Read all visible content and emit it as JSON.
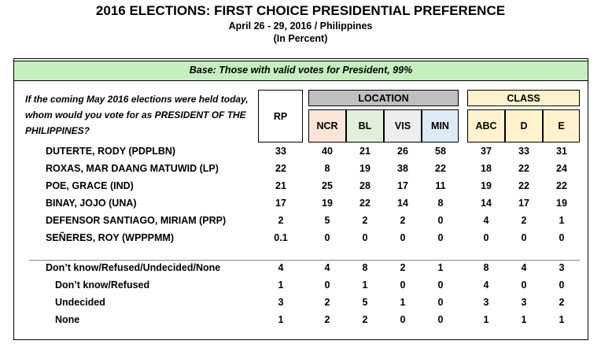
{
  "header": {
    "title": "2016 ELECTIONS: FIRST CHOICE PRESIDENTIAL PREFERENCE",
    "date_line": "April 26 - 29, 2016 / Philippines",
    "unit_line": "(In Percent)"
  },
  "base_note": "Base: Those with valid votes for President, 99%",
  "question": "If the coming May 2016 elections were held today, whom would you vote for as PRESIDENT OF THE PHILIPPINES?",
  "columns": {
    "rp": "RP",
    "location_group": "LOCATION",
    "class_group": "CLASS",
    "ncr": "NCR",
    "bl": "BL",
    "vis": "VIS",
    "min": "MIN",
    "abc": "ABC",
    "d": "D",
    "e": "E"
  },
  "colors": {
    "base_bar": "#c6efc0",
    "location_group": "#bfbfbf",
    "class_group": "#fff2cc",
    "ncr": "#fce4d6",
    "bl": "#e2efda",
    "vis": "#ededed",
    "min": "#ddebf7",
    "class_sub": "#fff2cc"
  },
  "rows": [
    {
      "label": "DUTERTE, RODY (PDPLBN)",
      "values": [
        "33",
        "40",
        "21",
        "26",
        "58",
        "37",
        "33",
        "31"
      ]
    },
    {
      "label": "ROXAS, MAR DAANG MATUWID (LP)",
      "values": [
        "22",
        "8",
        "19",
        "38",
        "22",
        "18",
        "22",
        "24"
      ]
    },
    {
      "label": "POE, GRACE (IND)",
      "values": [
        "21",
        "25",
        "28",
        "17",
        "11",
        "19",
        "22",
        "22"
      ]
    },
    {
      "label": "BINAY, JOJO (UNA)",
      "values": [
        "17",
        "19",
        "22",
        "14",
        "8",
        "14",
        "17",
        "19"
      ]
    },
    {
      "label": "DEFENSOR SANTIAGO, MIRIAM (PRP)",
      "values": [
        "2",
        "5",
        "2",
        "2",
        "0",
        "4",
        "2",
        "1"
      ]
    },
    {
      "label": "SEÑERES, ROY (WPPPMM)",
      "values": [
        "0.1",
        "0",
        "0",
        "0",
        "0",
        "0",
        "0",
        "0"
      ]
    },
    {
      "label": "Don’t know/Refused/Undecided/None",
      "values": [
        "4",
        "4",
        "8",
        "2",
        "1",
        "8",
        "4",
        "3"
      ]
    },
    {
      "label": "Don’t know/Refused",
      "values": [
        "1",
        "0",
        "1",
        "0",
        "0",
        "4",
        "0",
        "0"
      ]
    },
    {
      "label": "Undecided",
      "values": [
        "3",
        "2",
        "5",
        "1",
        "0",
        "3",
        "3",
        "2"
      ]
    },
    {
      "label": "None",
      "values": [
        "1",
        "2",
        "2",
        "0",
        "0",
        "1",
        "1",
        "1"
      ]
    }
  ]
}
